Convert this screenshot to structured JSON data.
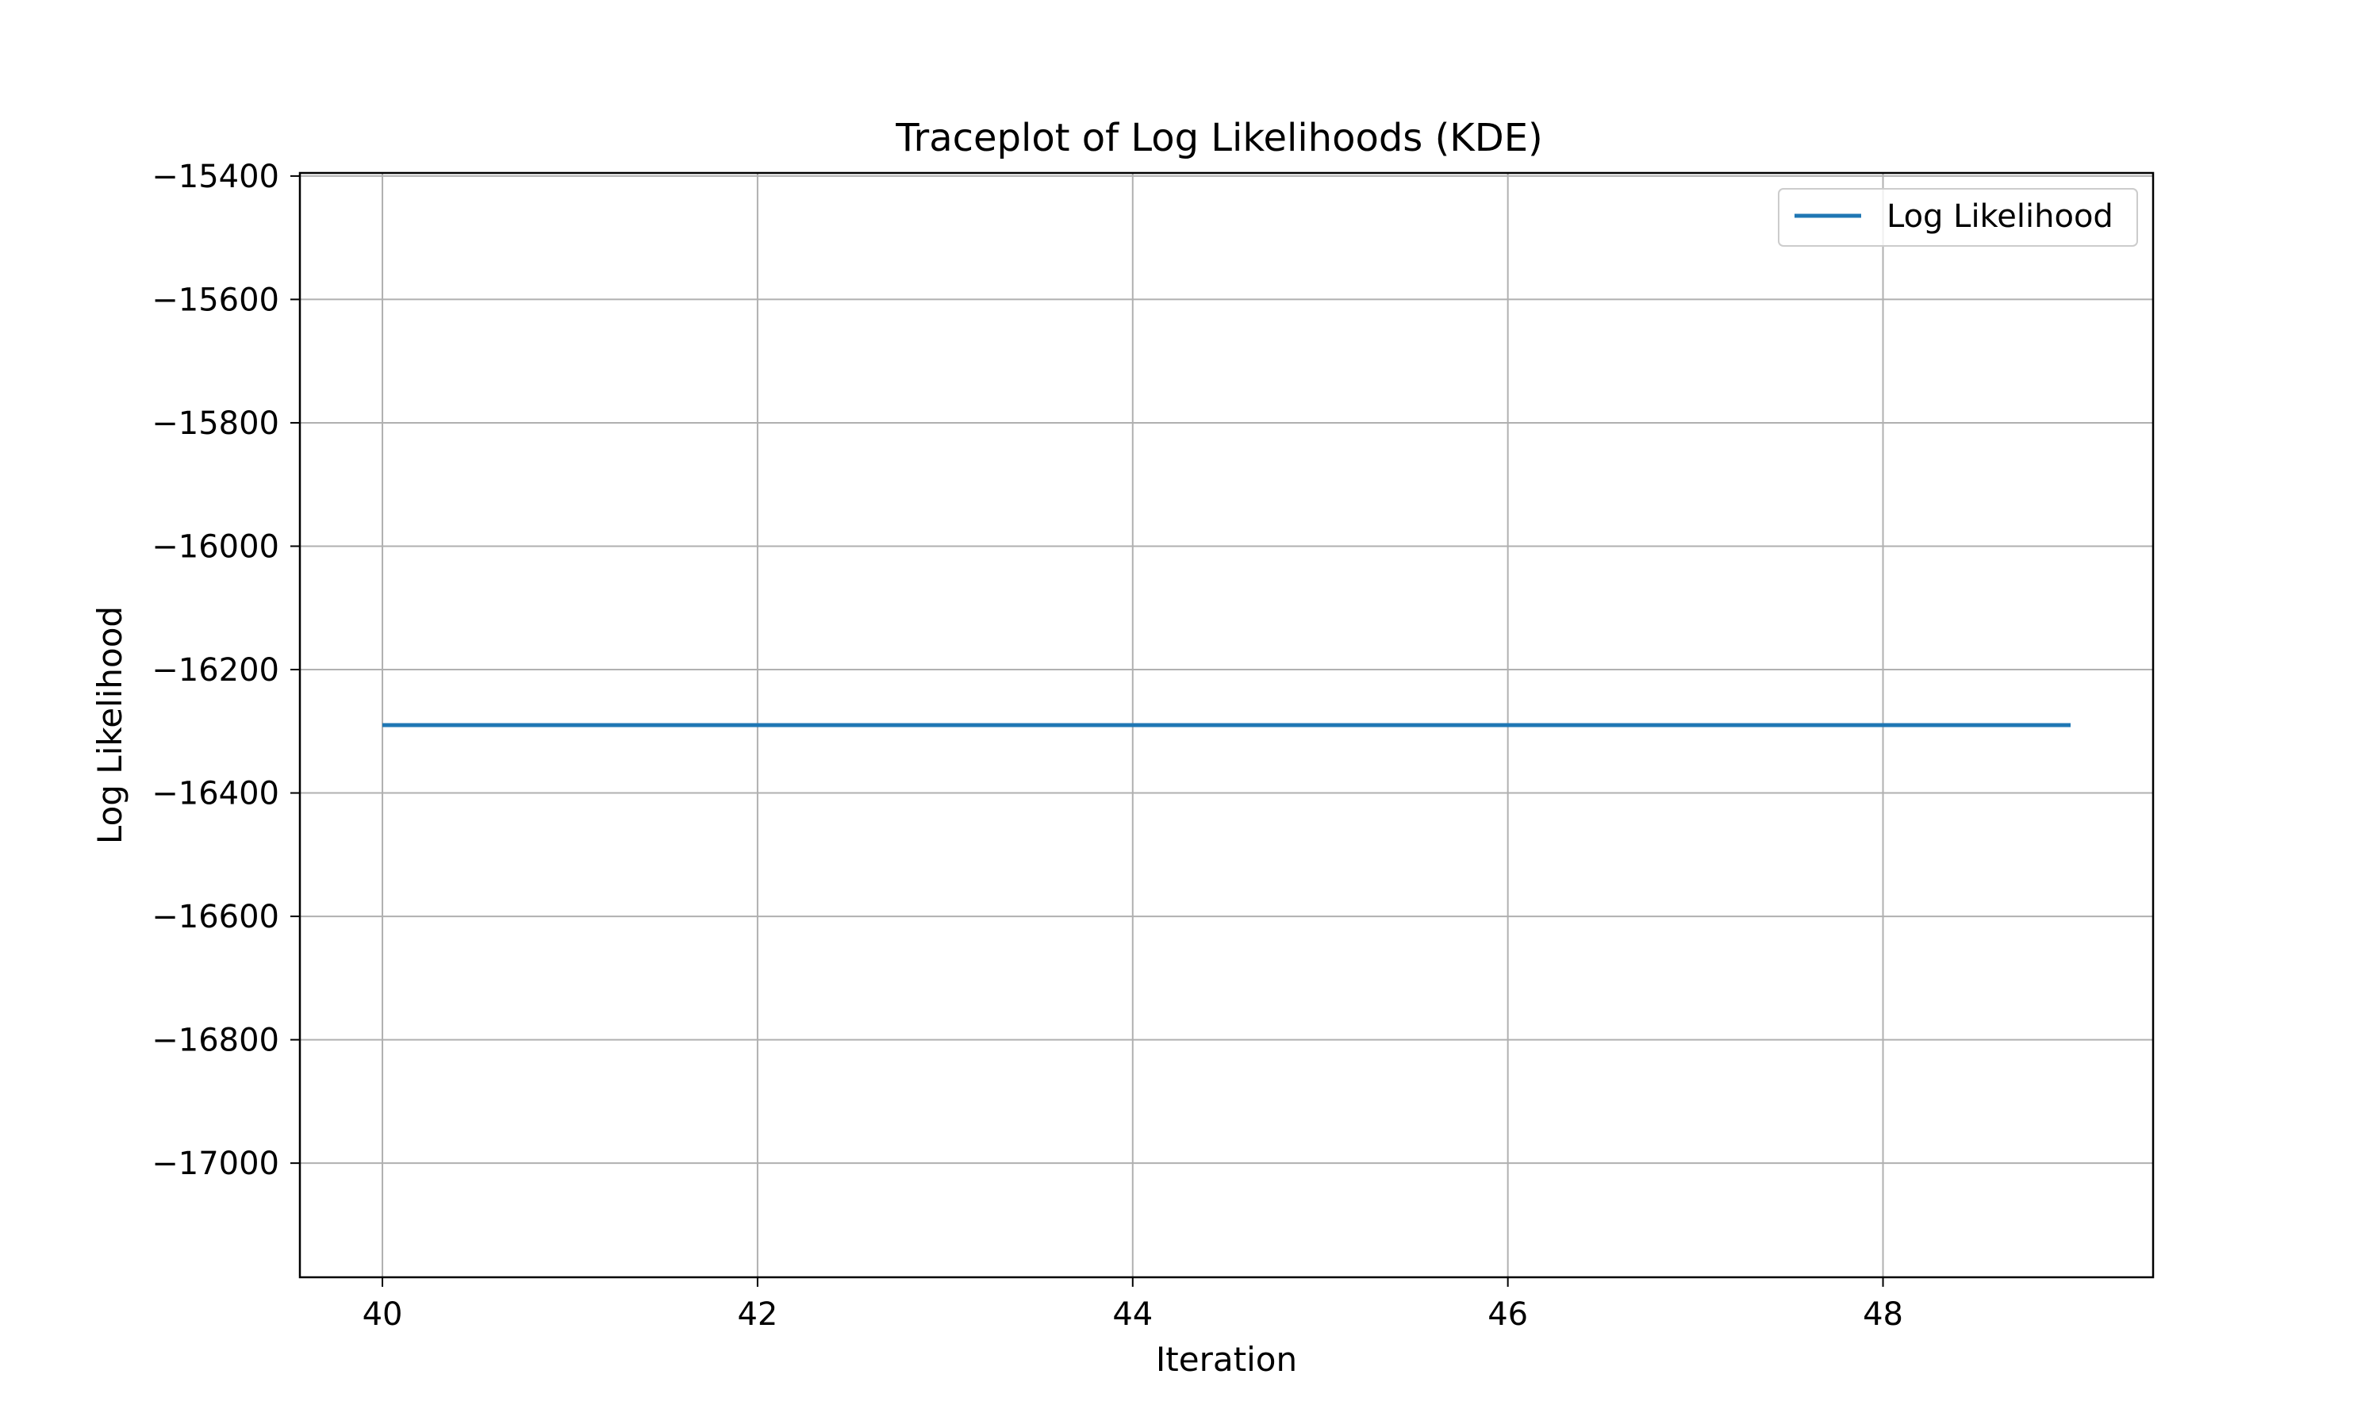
{
  "chart_data": {
    "type": "line",
    "title": "Traceplot of Log Likelihoods (KDE)",
    "xlabel": "Iteration",
    "ylabel": "Log Likelihood",
    "xlim": [
      39.56,
      49.44
    ],
    "ylim": [
      -17185,
      -15395
    ],
    "xticks": [
      40,
      42,
      44,
      46,
      48
    ],
    "yticks": [
      -15400,
      -15600,
      -15800,
      -16000,
      -16200,
      -16400,
      -16600,
      -16800,
      -17000
    ],
    "ytick_labels": [
      "−15400",
      "−15600",
      "−15800",
      "−16000",
      "−16200",
      "−16400",
      "−16600",
      "−16800",
      "−17000"
    ],
    "grid": true,
    "legend_position": "top-right",
    "series": [
      {
        "name": "Log Likelihood",
        "color": "#1f77b4",
        "x": [
          40,
          41,
          42,
          43,
          44,
          45,
          46,
          47,
          48,
          49
        ],
        "y": [
          -16290,
          -16290,
          -16290,
          -16290,
          -16290,
          -16290,
          -16290,
          -16290,
          -16290,
          -16290
        ]
      }
    ]
  }
}
